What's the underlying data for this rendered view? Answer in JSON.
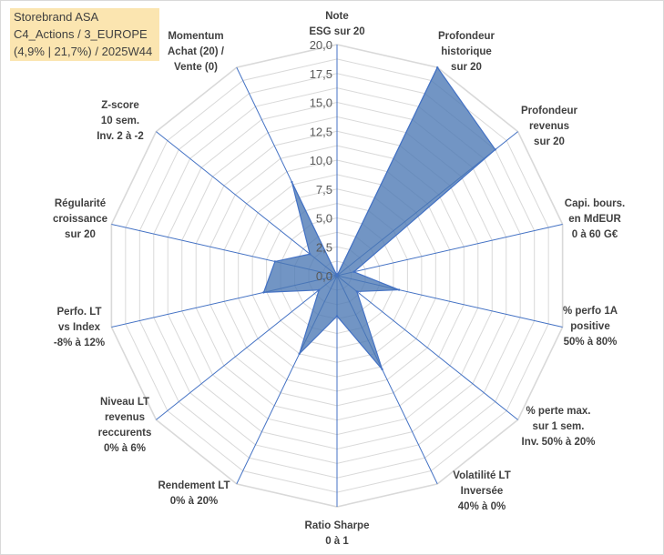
{
  "title_box": {
    "line1": "Storebrand ASA",
    "line2": "C4_Actions / 3_EUROPE",
    "line3": "(4,9% | 21,7%) / 2025W44"
  },
  "colors": {
    "fill": "#4a77b4",
    "stroke": "#4472c4",
    "grid": "#d9d9d9",
    "spoke": "#4472c4",
    "title_bg": "#fbe5b0"
  },
  "chart_data": {
    "type": "radar",
    "rmin": 0,
    "rmax": 20,
    "tick_step": 2.5,
    "tick_labels": [
      "0,0",
      "2,5",
      "5,0",
      "7,5",
      "10,0",
      "12,5",
      "15,0",
      "17,5",
      "20,0"
    ],
    "axes": [
      {
        "label": [
          "Note",
          "ESG sur 20"
        ]
      },
      {
        "label": [
          "Profondeur",
          "historique",
          "sur 20"
        ]
      },
      {
        "label": [
          "Profondeur",
          "revenus",
          "sur 20"
        ]
      },
      {
        "label": [
          "Capi. bours.",
          "en MdEUR",
          "0 à 60 G€"
        ]
      },
      {
        "label": [
          "% perfo 1A",
          "positive",
          "50% à 80%"
        ]
      },
      {
        "label": [
          "% perte max.",
          "sur 1 sem.",
          "Inv. 50% à 20%"
        ]
      },
      {
        "label": [
          "Volatilité LT",
          "Inversée",
          "40% à 0%"
        ]
      },
      {
        "label": [
          "Ratio Sharpe",
          "0 à 1"
        ]
      },
      {
        "label": [
          "Rendement LT",
          "0% à 20%"
        ]
      },
      {
        "label": [
          "Niveau LT",
          "revenus",
          "reccurents",
          "0% à 6%"
        ]
      },
      {
        "label": [
          "Perfo. LT",
          "vs Index",
          "-8% à 12%"
        ]
      },
      {
        "label": [
          "Régularité",
          "croissance",
          "sur 20"
        ]
      },
      {
        "label": [
          "Z-score",
          "10 sem.",
          "Inv. 2 à -2"
        ]
      },
      {
        "label": [
          "Momentum",
          "Achat (20) /",
          "Vente (0)"
        ]
      }
    ],
    "series": [
      {
        "values": [
          0,
          20,
          17.5,
          1.5,
          5.5,
          2.2,
          9,
          3.5,
          7.5,
          2,
          6.5,
          5.5,
          3,
          9
        ]
      }
    ]
  }
}
